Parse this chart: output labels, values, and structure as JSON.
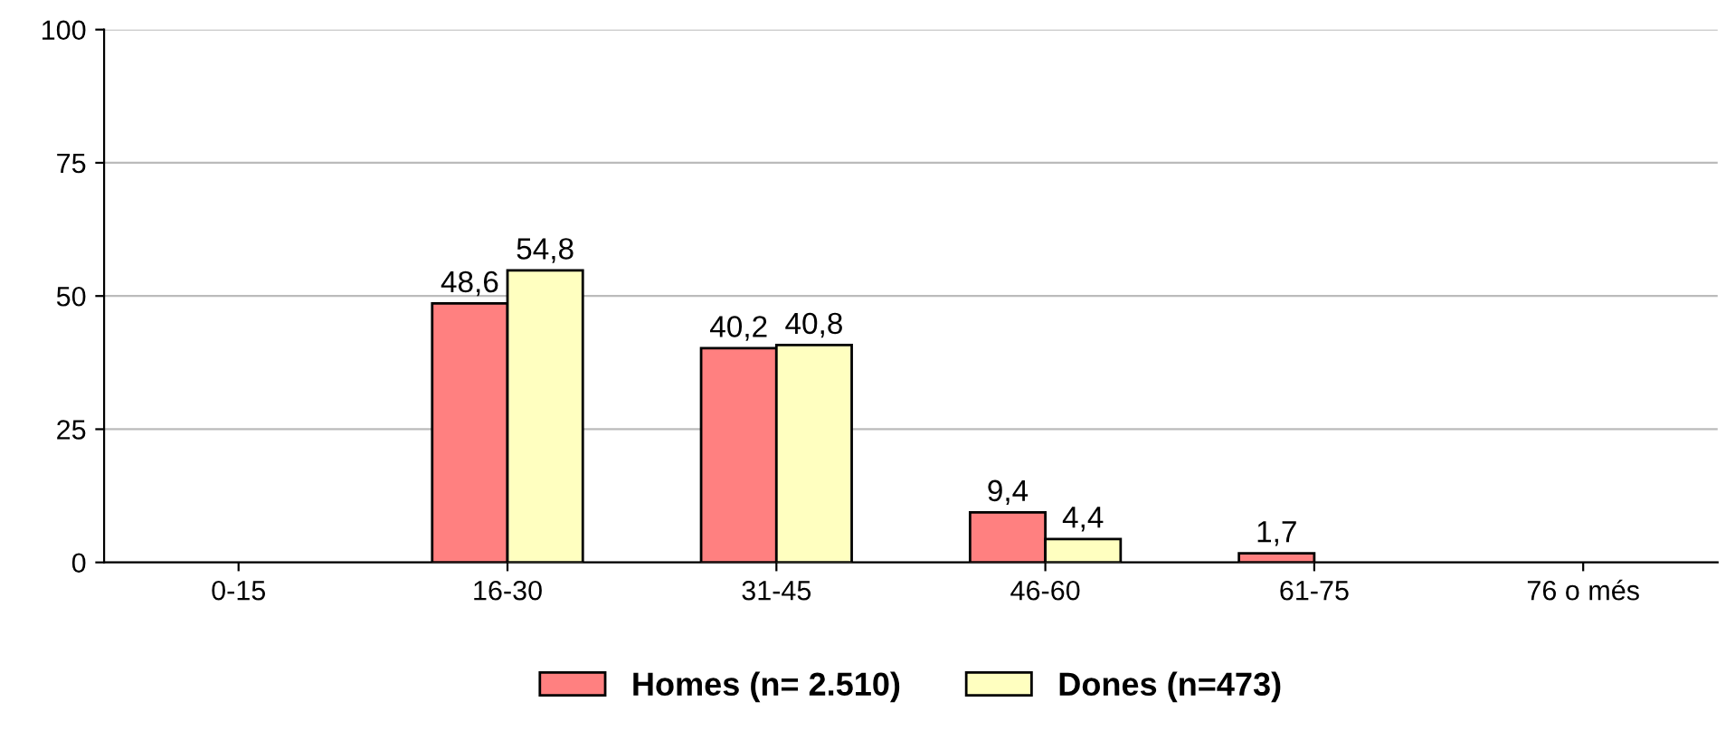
{
  "chart_data": {
    "type": "bar",
    "categories": [
      "0-15",
      "16-30",
      "31-45",
      "46-60",
      "61-75",
      "76 o més"
    ],
    "series": [
      {
        "name": "Homes (n= 2.510)",
        "color": "#ff8080",
        "values": [
          null,
          48.6,
          40.2,
          9.4,
          1.7,
          null
        ],
        "value_labels": [
          null,
          "48,6",
          "40,2",
          "9,4",
          "1,7",
          null
        ]
      },
      {
        "name": "Dones (n=473)",
        "color": "#ffffc0",
        "values": [
          null,
          54.8,
          40.8,
          4.4,
          null,
          null
        ],
        "value_labels": [
          null,
          "54,8",
          "40,8",
          "4,4",
          null,
          null
        ]
      }
    ],
    "ylim": [
      0,
      100
    ],
    "yticks": [
      0,
      25,
      50,
      75,
      100
    ],
    "grid": "y",
    "legend": "bottom"
  }
}
